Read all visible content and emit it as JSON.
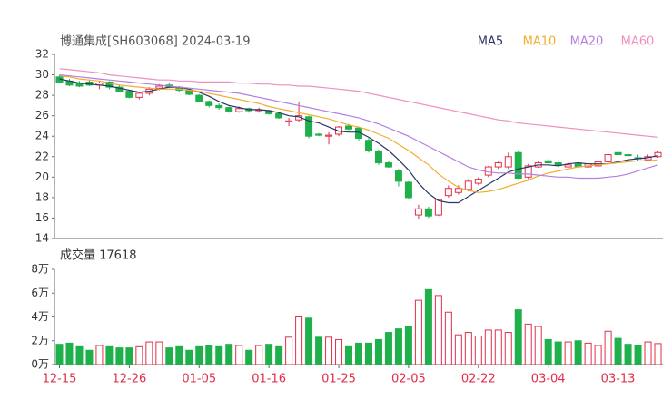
{
  "chart_data": [
    {
      "type": "candlestick",
      "title": "博通集成[SH603068] 2024-03-19",
      "up_color": "#e0304a",
      "down_color": "#1fb04b",
      "ylim": [
        14,
        32
      ],
      "yticks": [
        14,
        16,
        18,
        20,
        22,
        24,
        26,
        28,
        30,
        32
      ],
      "open": [
        29.8,
        29.4,
        29.2,
        29.3,
        29.0,
        29.3,
        28.8,
        28.4,
        27.8,
        28.2,
        28.7,
        29.0,
        28.8,
        28.5,
        28.0,
        27.4,
        27.0,
        26.8,
        26.4,
        26.7,
        26.5,
        26.5,
        26.2,
        25.4,
        25.6,
        25.9,
        24.2,
        24.0,
        24.2,
        25.0,
        24.8,
        23.6,
        22.5,
        21.4,
        20.6,
        19.5,
        16.3,
        16.9,
        16.3,
        18.2,
        18.5,
        18.8,
        19.4,
        20.2,
        21.0,
        21.0,
        22.4,
        20.0,
        21.0,
        21.6,
        21.4,
        21.0,
        21.3,
        21.0,
        21.1,
        21.5,
        22.4,
        22.2,
        21.9,
        21.7,
        22.0
      ],
      "high": [
        30.0,
        29.6,
        29.4,
        29.5,
        29.4,
        29.4,
        29.0,
        28.5,
        28.3,
        28.8,
        29.1,
        29.2,
        28.9,
        28.6,
        28.1,
        27.5,
        27.2,
        26.9,
        26.9,
        26.8,
        26.8,
        26.6,
        26.3,
        25.8,
        27.4,
        26.0,
        24.3,
        24.4,
        25.0,
        25.2,
        24.9,
        23.8,
        22.7,
        21.6,
        20.8,
        19.6,
        17.3,
        17.1,
        17.9,
        19.2,
        19.2,
        19.8,
        20.0,
        21.1,
        21.6,
        22.4,
        22.6,
        21.3,
        21.6,
        21.8,
        21.7,
        21.5,
        21.5,
        21.5,
        21.6,
        22.4,
        22.6,
        22.5,
        22.2,
        22.2,
        22.6
      ],
      "low": [
        29.2,
        28.9,
        28.8,
        28.9,
        28.6,
        28.6,
        28.3,
        27.7,
        27.6,
        28.0,
        28.5,
        28.7,
        28.3,
        28.0,
        27.3,
        26.8,
        26.6,
        26.3,
        26.3,
        26.3,
        26.3,
        26.1,
        25.7,
        25.0,
        25.4,
        23.8,
        24.0,
        23.2,
        24.0,
        24.6,
        23.6,
        22.4,
        21.2,
        20.9,
        19.1,
        17.8,
        15.9,
        16.0,
        16.2,
        18.0,
        18.3,
        18.6,
        19.2,
        20.0,
        20.8,
        20.8,
        19.8,
        19.8,
        20.9,
        21.3,
        20.9,
        20.9,
        20.8,
        20.9,
        21.0,
        21.4,
        22.1,
        22.0,
        21.6,
        21.6,
        21.9
      ],
      "close": [
        29.3,
        29.0,
        28.9,
        29.0,
        29.2,
        28.8,
        28.4,
        27.8,
        28.2,
        28.6,
        28.9,
        28.8,
        28.5,
        28.1,
        27.4,
        27.0,
        26.8,
        26.4,
        26.7,
        26.5,
        26.6,
        26.2,
        25.8,
        25.5,
        26.0,
        24.0,
        24.1,
        24.1,
        24.9,
        24.7,
        23.8,
        22.6,
        21.4,
        21.0,
        19.6,
        18.0,
        16.9,
        16.2,
        17.8,
        18.9,
        18.9,
        19.6,
        19.8,
        21.0,
        21.4,
        22.0,
        19.9,
        21.1,
        21.4,
        21.4,
        21.2,
        21.2,
        21.0,
        21.3,
        21.5,
        22.2,
        22.2,
        22.1,
        21.8,
        22.0,
        22.4
      ],
      "series": [
        {
          "name": "MA5",
          "color": "#2c3566",
          "values": [
            29.6,
            29.4,
            29.2,
            29.1,
            29.0,
            28.9,
            28.7,
            28.5,
            28.3,
            28.4,
            28.6,
            28.8,
            28.8,
            28.6,
            28.3,
            27.9,
            27.4,
            27.0,
            26.8,
            26.6,
            26.6,
            26.5,
            26.3,
            26.0,
            25.9,
            25.5,
            25.3,
            24.9,
            24.5,
            24.4,
            24.4,
            23.9,
            23.3,
            22.6,
            21.7,
            20.7,
            19.4,
            18.4,
            17.7,
            17.5,
            17.5,
            18.1,
            18.7,
            19.3,
            19.9,
            20.5,
            20.8,
            21.0,
            21.2,
            21.2,
            21.1,
            21.3,
            21.4,
            21.3,
            21.3,
            21.3,
            21.5,
            21.7,
            21.8,
            21.9,
            22.1
          ]
        },
        {
          "name": "MA10",
          "color": "#f2ad2f",
          "values": [
            29.9,
            29.8,
            29.6,
            29.5,
            29.4,
            29.2,
            29.0,
            28.9,
            28.8,
            28.7,
            28.6,
            28.6,
            28.6,
            28.5,
            28.4,
            28.2,
            28.0,
            27.8,
            27.6,
            27.4,
            27.2,
            26.9,
            26.7,
            26.5,
            26.3,
            26.1,
            25.9,
            25.7,
            25.4,
            25.1,
            24.9,
            24.6,
            24.2,
            23.8,
            23.2,
            22.6,
            21.9,
            21.2,
            20.3,
            19.6,
            19.0,
            18.7,
            18.5,
            18.6,
            18.8,
            19.1,
            19.4,
            19.7,
            20.1,
            20.4,
            20.6,
            20.8,
            21.0,
            21.1,
            21.2,
            21.3,
            21.4,
            21.5,
            21.6,
            21.6,
            21.7
          ]
        },
        {
          "name": "MA20",
          "color": "#b47fe0",
          "values": [
            30.0,
            29.9,
            29.8,
            29.7,
            29.6,
            29.5,
            29.4,
            29.3,
            29.2,
            29.1,
            29.0,
            28.9,
            28.8,
            28.7,
            28.6,
            28.5,
            28.4,
            28.3,
            28.2,
            28.0,
            27.8,
            27.6,
            27.4,
            27.2,
            27.0,
            26.8,
            26.6,
            26.4,
            26.2,
            26.0,
            25.8,
            25.5,
            25.2,
            24.8,
            24.4,
            24.0,
            23.5,
            23.0,
            22.5,
            22.0,
            21.5,
            21.0,
            20.7,
            20.5,
            20.4,
            20.4,
            20.3,
            20.3,
            20.2,
            20.1,
            20.0,
            20.0,
            19.9,
            19.9,
            19.9,
            20.0,
            20.1,
            20.3,
            20.6,
            20.9,
            21.2
          ]
        },
        {
          "name": "MA60",
          "color": "#ef8fc0",
          "values": [
            30.6,
            30.5,
            30.4,
            30.3,
            30.2,
            30.0,
            29.9,
            29.8,
            29.7,
            29.6,
            29.5,
            29.5,
            29.4,
            29.4,
            29.3,
            29.3,
            29.3,
            29.3,
            29.2,
            29.2,
            29.1,
            29.1,
            29.0,
            29.0,
            28.9,
            28.9,
            28.8,
            28.7,
            28.6,
            28.5,
            28.4,
            28.2,
            28.0,
            27.8,
            27.6,
            27.4,
            27.2,
            27.0,
            26.8,
            26.6,
            26.4,
            26.2,
            26.0,
            25.8,
            25.6,
            25.5,
            25.3,
            25.2,
            25.1,
            25.0,
            24.9,
            24.8,
            24.7,
            24.6,
            24.5,
            24.4,
            24.3,
            24.2,
            24.1,
            24.0,
            23.9
          ]
        }
      ]
    },
    {
      "type": "bar",
      "title": "成交量 17618",
      "ylim": [
        0,
        8
      ],
      "yticks": [
        {
          "value": 0,
          "label": "0万"
        },
        {
          "value": 2,
          "label": "2万"
        },
        {
          "value": 4,
          "label": "4万"
        },
        {
          "value": 6,
          "label": "6万"
        },
        {
          "value": 8,
          "label": "8万"
        }
      ],
      "values": [
        1.7,
        1.8,
        1.5,
        1.2,
        1.6,
        1.5,
        1.4,
        1.4,
        1.5,
        1.9,
        1.9,
        1.4,
        1.5,
        1.2,
        1.5,
        1.6,
        1.5,
        1.7,
        1.6,
        1.2,
        1.6,
        1.7,
        1.5,
        2.3,
        4.0,
        3.9,
        2.3,
        2.3,
        2.1,
        1.5,
        1.8,
        1.8,
        2.1,
        2.7,
        3.0,
        3.2,
        5.4,
        6.3,
        5.8,
        4.4,
        2.5,
        2.7,
        2.4,
        2.9,
        2.9,
        2.7,
        4.6,
        3.4,
        3.2,
        2.1,
        1.9,
        1.9,
        2.0,
        1.8,
        1.6,
        2.8,
        2.2,
        1.7,
        1.6,
        1.9,
        1.7618
      ],
      "categories": [
        "12-15",
        null,
        null,
        null,
        null,
        null,
        null,
        "12-26",
        null,
        null,
        null,
        null,
        null,
        null,
        "01-05",
        null,
        null,
        null,
        null,
        null,
        null,
        "01-16",
        null,
        null,
        null,
        null,
        null,
        null,
        "01-25",
        null,
        null,
        null,
        null,
        null,
        null,
        "02-05",
        null,
        null,
        null,
        null,
        null,
        null,
        "02-22",
        null,
        null,
        null,
        null,
        null,
        null,
        "03-04",
        null,
        null,
        null,
        null,
        null,
        null,
        "03-13",
        null,
        null,
        null,
        null
      ]
    }
  ]
}
